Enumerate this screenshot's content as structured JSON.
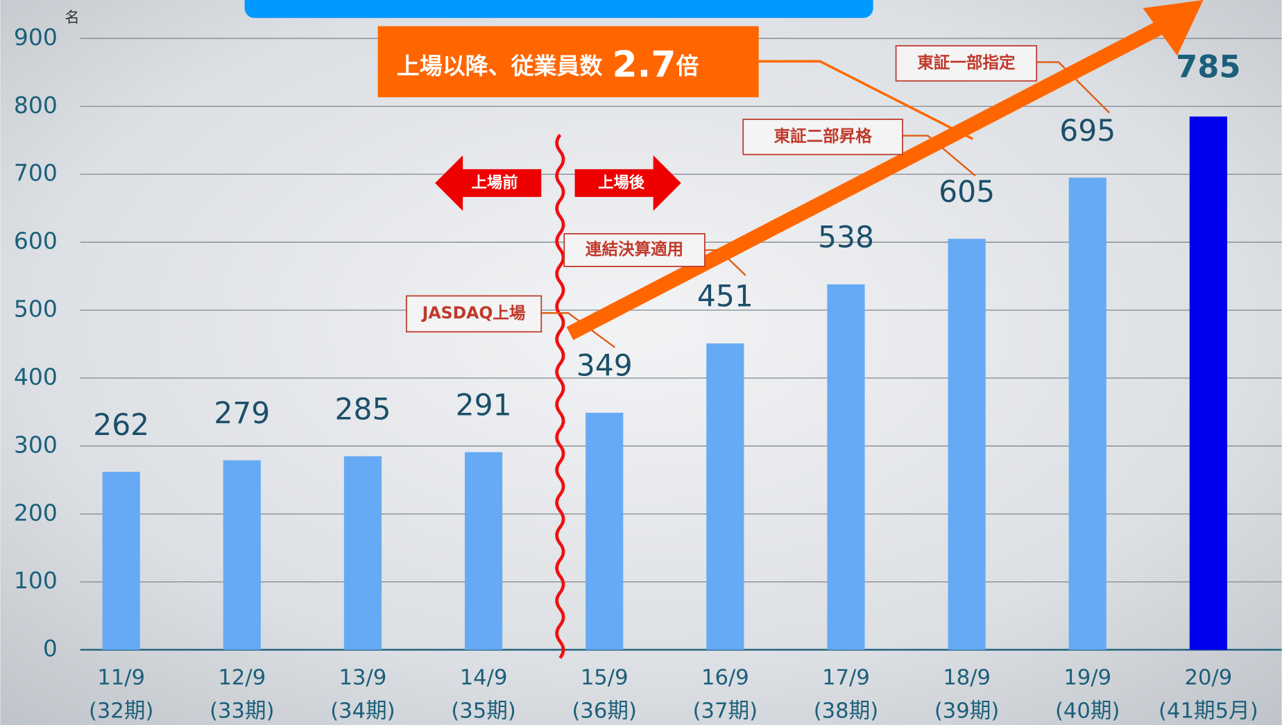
{
  "chart_data": {
    "type": "bar",
    "y_unit": "名",
    "categories": [
      "11/9",
      "12/9",
      "13/9",
      "14/9",
      "15/9",
      "16/9",
      "17/9",
      "18/9",
      "19/9",
      "20/9"
    ],
    "periods": [
      "(32期)",
      "(33期)",
      "(34期)",
      "(35期)",
      "(36期)",
      "(37期)",
      "(38期)",
      "(39期)",
      "(40期)",
      "(41期5月)"
    ],
    "values": [
      262,
      279,
      285,
      291,
      349,
      451,
      538,
      605,
      695,
      785
    ],
    "colors": [
      "#66aaf5",
      "#66aaf5",
      "#66aaf5",
      "#66aaf5",
      "#66aaf5",
      "#66aaf5",
      "#66aaf5",
      "#66aaf5",
      "#66aaf5",
      "#0000ee"
    ],
    "ylim": [
      0,
      900
    ],
    "yticks": [
      0,
      100,
      200,
      300,
      400,
      500,
      600,
      700,
      800,
      900
    ],
    "grid": true,
    "headline": {
      "text": "上場以降、従業員数",
      "number": "2.7",
      "suffix": "倍"
    },
    "before_label": "上場前",
    "after_label": "上場後",
    "milestones": [
      "JASDAQ上場",
      "連結決算適用",
      "東証二部昇格",
      "東証一部指定"
    ]
  }
}
